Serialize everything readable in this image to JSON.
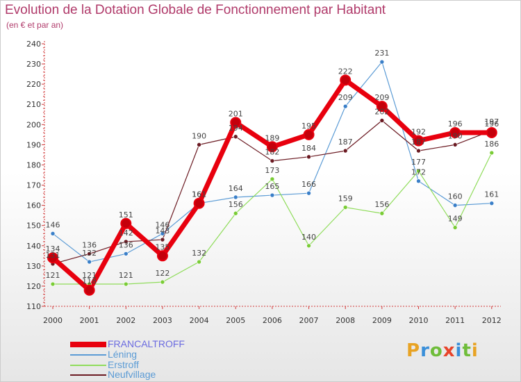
{
  "header": {
    "title": "Evolution de la Dotation Globale de Fonctionnement par Habitant",
    "subtitle": "(en € et par an)"
  },
  "logo": {
    "letters": [
      "P",
      "r",
      "o",
      "x",
      "i",
      "t",
      "i"
    ],
    "colors": [
      "#e8a324",
      "#3a8fd9",
      "#6fbd3a",
      "#e8442a",
      "#3a8fd9",
      "#6fbd3a",
      "#e8a324"
    ]
  },
  "chart_data": {
    "type": "line",
    "title": "Evolution de la Dotation Globale de Fonctionnement par Habitant",
    "subtitle": "(en € et par an)",
    "xlabel": "",
    "ylabel": "",
    "categories": [
      "2000",
      "2001",
      "2002",
      "2003",
      "2004",
      "2005",
      "2006",
      "2007",
      "2008",
      "2009",
      "2010",
      "2011",
      "2012"
    ],
    "ylim": [
      110,
      240
    ],
    "yticks": [
      110,
      120,
      130,
      140,
      150,
      160,
      170,
      180,
      190,
      200,
      210,
      220,
      230,
      240
    ],
    "grid": false,
    "legend_position": "bottom-left",
    "series": [
      {
        "name": "FRANCALTROFF",
        "color": "#e8000e",
        "values": [
          134,
          118,
          151,
          135,
          161,
          201,
          189,
          195,
          222,
          209,
          192,
          196,
          196
        ]
      },
      {
        "name": "Léning",
        "color": "#5b9bd5",
        "values": [
          146,
          132,
          136,
          146,
          161,
          164,
          165,
          166,
          209,
          231,
          172,
          160,
          161
        ]
      },
      {
        "name": "Erstroff",
        "color": "#8fdc5a",
        "values": [
          121,
          121,
          121,
          122,
          132,
          156,
          173,
          140,
          159,
          156,
          177,
          149,
          186
        ]
      },
      {
        "name": "Neufvillage",
        "color": "#6b1a22",
        "values": [
          131,
          136,
          142,
          143,
          190,
          194,
          182,
          184,
          187,
          202,
          187,
          190,
          197
        ]
      }
    ]
  }
}
